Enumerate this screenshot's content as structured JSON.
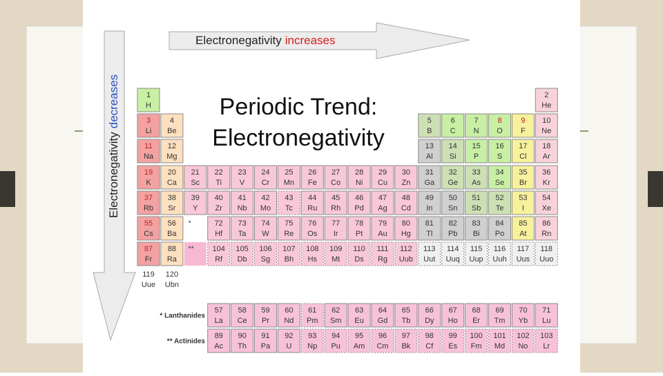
{
  "arrows": {
    "top": {
      "text": "Electronegativity",
      "highlight": "increases"
    },
    "left": {
      "text": "Electronegativity",
      "highlight": "decreases"
    }
  },
  "title": [
    "Periodic Trend:",
    "Electronegativity"
  ],
  "table": {
    "rows": [
      [
        [
          1,
          "H"
        ],
        null,
        null,
        null,
        null,
        null,
        null,
        null,
        null,
        null,
        null,
        null,
        null,
        null,
        null,
        null,
        null,
        [
          2,
          "He"
        ]
      ],
      [
        [
          3,
          "Li"
        ],
        [
          4,
          "Be"
        ],
        null,
        null,
        null,
        null,
        null,
        null,
        null,
        null,
        null,
        null,
        [
          5,
          "B"
        ],
        [
          6,
          "C"
        ],
        [
          7,
          "N"
        ],
        [
          8,
          "O"
        ],
        [
          9,
          "F"
        ],
        [
          10,
          "Ne"
        ]
      ],
      [
        [
          11,
          "Na"
        ],
        [
          12,
          "Mg"
        ],
        null,
        null,
        null,
        null,
        null,
        null,
        null,
        null,
        null,
        null,
        [
          13,
          "Al"
        ],
        [
          14,
          "Si"
        ],
        [
          15,
          "P"
        ],
        [
          16,
          "S"
        ],
        [
          17,
          "Cl"
        ],
        [
          18,
          "Ar"
        ]
      ],
      [
        [
          19,
          "K"
        ],
        [
          20,
          "Ca"
        ],
        [
          21,
          "Sc"
        ],
        [
          22,
          "Ti"
        ],
        [
          23,
          "V"
        ],
        [
          24,
          "Cr"
        ],
        [
          25,
          "Mn"
        ],
        [
          26,
          "Fe"
        ],
        [
          27,
          "Co"
        ],
        [
          28,
          "Ni"
        ],
        [
          29,
          "Cu"
        ],
        [
          30,
          "Zn"
        ],
        [
          31,
          "Ga"
        ],
        [
          32,
          "Ge"
        ],
        [
          33,
          "As"
        ],
        [
          34,
          "Se"
        ],
        [
          35,
          "Br"
        ],
        [
          36,
          "Kr"
        ]
      ],
      [
        [
          37,
          "Rb"
        ],
        [
          38,
          "Sr"
        ],
        [
          39,
          "Y"
        ],
        [
          40,
          "Zr"
        ],
        [
          41,
          "Nb"
        ],
        [
          42,
          "Mo"
        ],
        [
          43,
          "Tc"
        ],
        [
          44,
          "Ru"
        ],
        [
          45,
          "Rh"
        ],
        [
          46,
          "Pd"
        ],
        [
          47,
          "Ag"
        ],
        [
          48,
          "Cd"
        ],
        [
          49,
          "In"
        ],
        [
          50,
          "Sn"
        ],
        [
          51,
          "Sb"
        ],
        [
          52,
          "Te"
        ],
        [
          53,
          "I"
        ],
        [
          54,
          "Xe"
        ]
      ],
      [
        [
          55,
          "Cs"
        ],
        [
          56,
          "Ba"
        ],
        [
          "*"
        ],
        [
          72,
          "Hf"
        ],
        [
          73,
          "Ta"
        ],
        [
          74,
          "W"
        ],
        [
          75,
          "Re"
        ],
        [
          76,
          "Os"
        ],
        [
          77,
          "Ir"
        ],
        [
          78,
          "Pt"
        ],
        [
          79,
          "Au"
        ],
        [
          80,
          "Hg"
        ],
        [
          81,
          "Tl"
        ],
        [
          82,
          "Pb"
        ],
        [
          83,
          "Bi"
        ],
        [
          84,
          "Po"
        ],
        [
          85,
          "At"
        ],
        [
          86,
          "Rn"
        ]
      ],
      [
        [
          87,
          "Fr"
        ],
        [
          88,
          "Ra"
        ],
        [
          "**"
        ],
        [
          104,
          "Rf"
        ],
        [
          105,
          "Db"
        ],
        [
          106,
          "Sg"
        ],
        [
          107,
          "Bh"
        ],
        [
          108,
          "Hs"
        ],
        [
          109,
          "Mt"
        ],
        [
          110,
          "Ds"
        ],
        [
          111,
          "Rg"
        ],
        [
          112,
          "Uub"
        ],
        [
          113,
          "Uut"
        ],
        [
          114,
          "Uuq"
        ],
        [
          115,
          "Uup"
        ],
        [
          116,
          "Uuh"
        ],
        [
          117,
          "Uus"
        ],
        [
          118,
          "Uuo"
        ]
      ],
      [
        [
          119,
          "Uue"
        ],
        [
          120,
          "Ubn"
        ],
        null,
        null,
        null,
        null,
        null,
        null,
        null,
        null,
        null,
        null,
        null,
        null,
        null,
        null,
        null,
        null
      ]
    ],
    "series": [
      {
        "label": "* Lanthanides",
        "cells": [
          [
            57,
            "La"
          ],
          [
            58,
            "Ce"
          ],
          [
            59,
            "Pr"
          ],
          [
            60,
            "Nd"
          ],
          [
            61,
            "Pm"
          ],
          [
            62,
            "Sm"
          ],
          [
            63,
            "Eu"
          ],
          [
            64,
            "Gd"
          ],
          [
            65,
            "Tb"
          ],
          [
            66,
            "Dy"
          ],
          [
            67,
            "Ho"
          ],
          [
            68,
            "Er"
          ],
          [
            69,
            "Tm"
          ],
          [
            70,
            "Yb"
          ],
          [
            71,
            "Lu"
          ]
        ]
      },
      {
        "label": "** Actinides",
        "cells": [
          [
            89,
            "Ac"
          ],
          [
            90,
            "Th"
          ],
          [
            91,
            "Pa"
          ],
          [
            92,
            "U"
          ],
          [
            93,
            "Np"
          ],
          [
            94,
            "Pu"
          ],
          [
            95,
            "Am"
          ],
          [
            96,
            "Cm"
          ],
          [
            97,
            "Bk"
          ],
          [
            98,
            "Cf"
          ],
          [
            99,
            "Es"
          ],
          [
            100,
            "Fm"
          ],
          [
            101,
            "Md"
          ],
          [
            102,
            "No"
          ],
          [
            103,
            "Lr"
          ]
        ]
      }
    ]
  }
}
